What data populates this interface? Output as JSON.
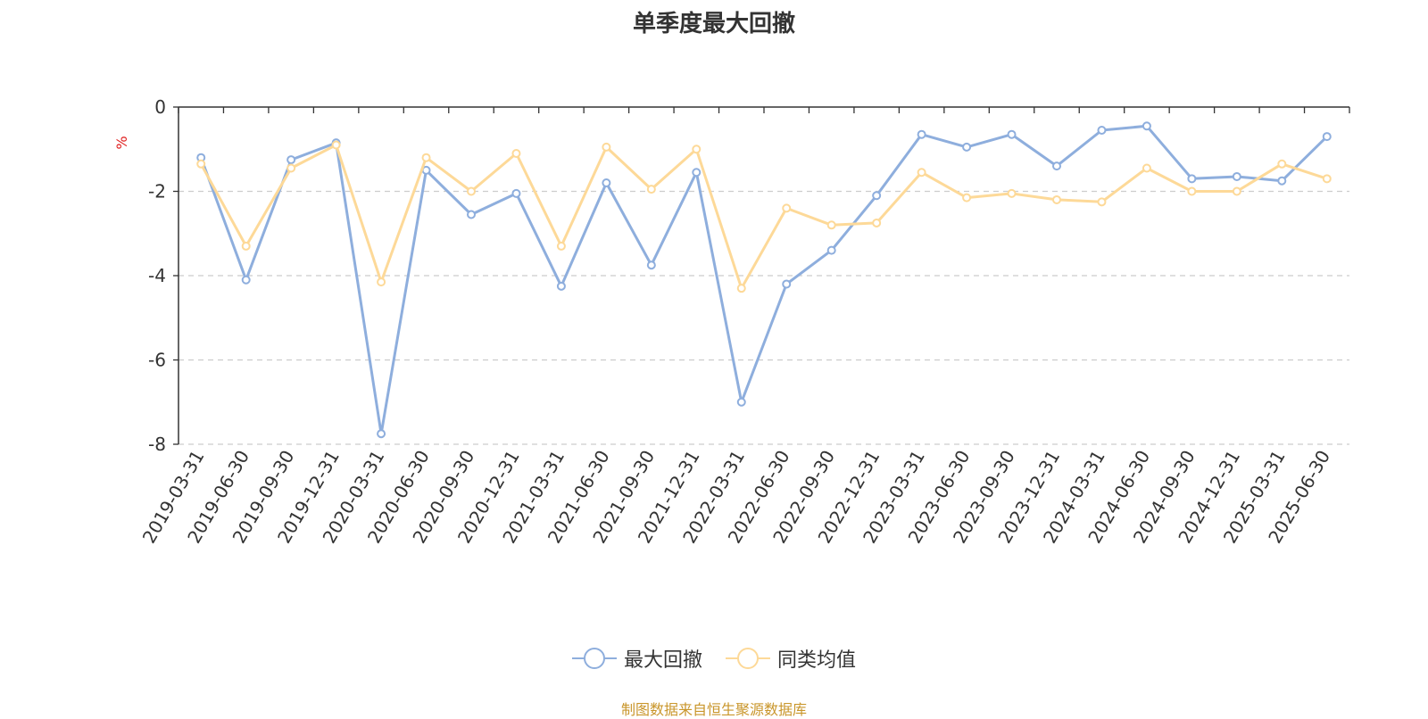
{
  "title": "单季度最大回撤",
  "source": "制图数据来自恒生聚源数据库",
  "chart_data": {
    "type": "line",
    "title": "单季度最大回撤",
    "ylabel": "%",
    "xlabel": "",
    "ylim": [
      -8,
      0
    ],
    "yticks": [
      0,
      -2,
      -4,
      -6,
      -8
    ],
    "grid": true,
    "legend_position": "bottom",
    "x": [
      "2019-03-31",
      "2019-06-30",
      "2019-09-30",
      "2019-12-31",
      "2020-03-31",
      "2020-06-30",
      "2020-09-30",
      "2020-12-31",
      "2021-03-31",
      "2021-06-30",
      "2021-09-30",
      "2021-12-31",
      "2022-03-31",
      "2022-06-30",
      "2022-09-30",
      "2022-12-31",
      "2023-03-31",
      "2023-06-30",
      "2023-09-30",
      "2023-12-31",
      "2024-03-31",
      "2024-06-30",
      "2024-09-30",
      "2024-12-31",
      "2025-03-31",
      "2025-06-30"
    ],
    "series": [
      {
        "name": "最大回撤",
        "color": "#8eaedd",
        "values": [
          -1.2,
          -4.1,
          -1.25,
          -0.85,
          -7.75,
          -1.5,
          -2.55,
          -2.05,
          -4.25,
          -1.8,
          -3.75,
          -1.55,
          -7.0,
          -4.2,
          -3.4,
          -2.1,
          -0.65,
          -0.95,
          -0.65,
          -1.4,
          -0.55,
          -0.45,
          -1.7,
          -1.65,
          -1.75,
          -0.7
        ]
      },
      {
        "name": "同类均值",
        "color": "#fdd998",
        "values": [
          -1.35,
          -3.3,
          -1.45,
          -0.9,
          -4.15,
          -1.2,
          -2.0,
          -1.1,
          -3.3,
          -0.95,
          -1.95,
          -1.0,
          -4.3,
          -2.4,
          -2.8,
          -2.75,
          -1.55,
          -2.15,
          -2.05,
          -2.2,
          -2.25,
          -1.45,
          -2.0,
          -2.0,
          -1.35,
          -1.7
        ]
      }
    ]
  }
}
